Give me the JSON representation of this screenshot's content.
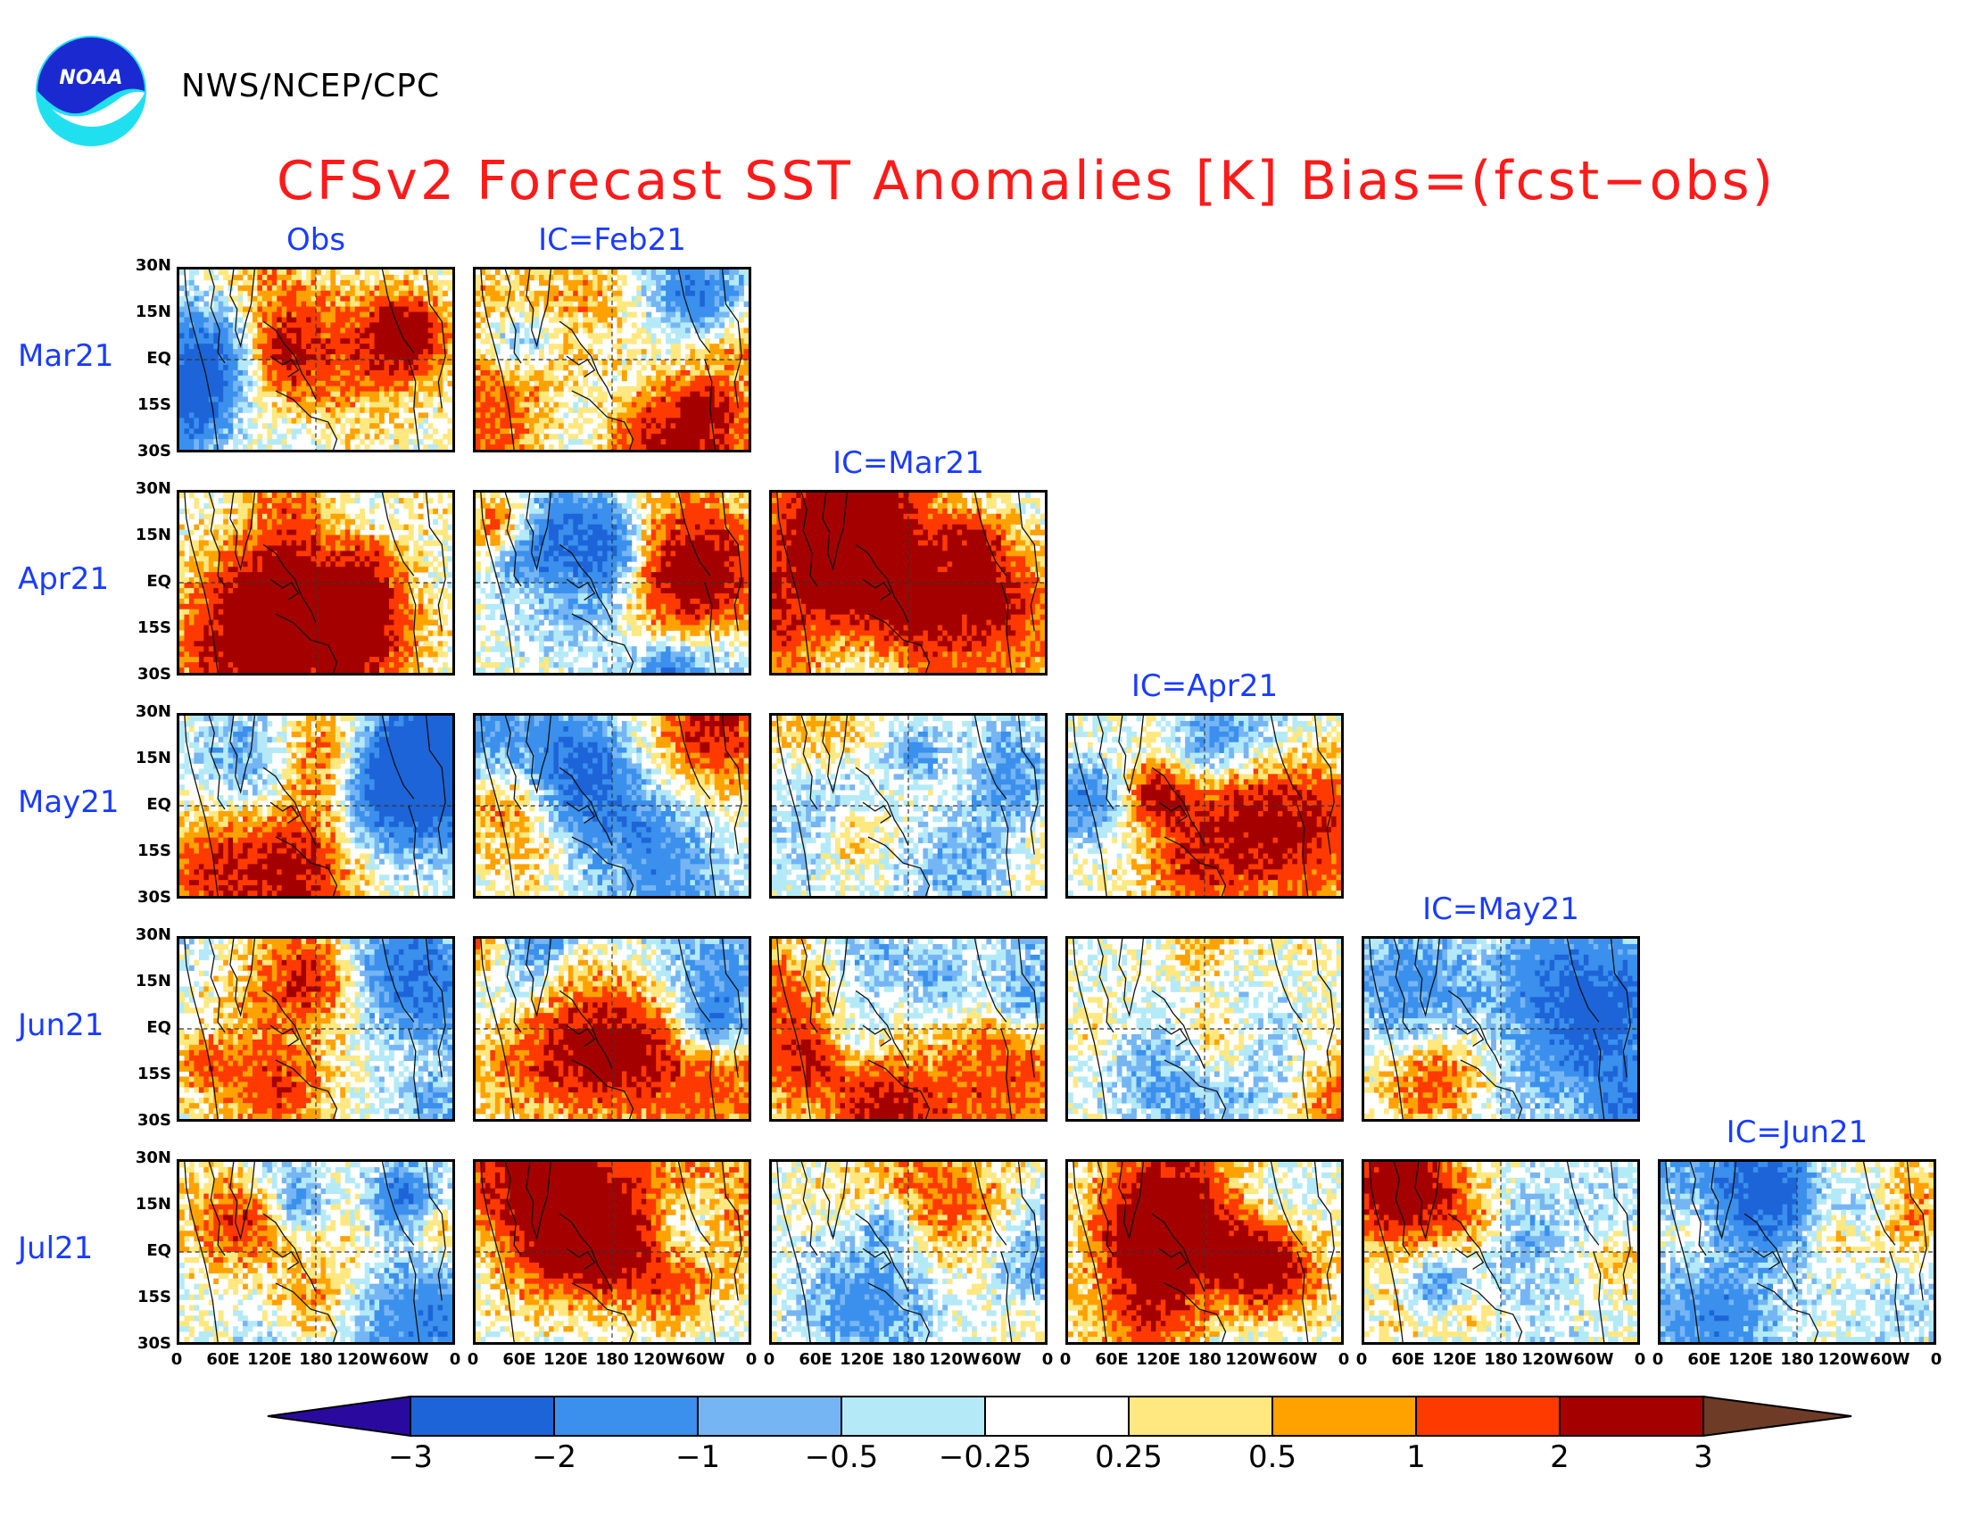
{
  "agency": "NWS/NCEP/CPC",
  "logo_text": "NOAA",
  "title": "CFSv2 Forecast SST Anomalies [K] Bias=(fcst−obs)",
  "column_headers": [
    "Obs",
    "IC=Feb21",
    "IC=Mar21",
    "IC=Apr21",
    "IC=May21",
    "IC=Jun21"
  ],
  "row_labels": [
    "Mar21",
    "Apr21",
    "May21",
    "Jun21",
    "Jul21"
  ],
  "lat_ticks": [
    "30N",
    "15N",
    "EQ",
    "15S",
    "30S"
  ],
  "lon_ticks": [
    "0",
    "60E",
    "120E",
    "180",
    "120W",
    "60W",
    "0"
  ],
  "colorbar": {
    "labels": [
      "−3",
      "−2",
      "−1",
      "−0.5",
      "−0.25",
      "0.25",
      "0.5",
      "1",
      "2",
      "3"
    ],
    "under_color": "#2a0a9e",
    "colors": [
      "#1d64d8",
      "#3a90ec",
      "#76b5f4",
      "#b4eaf8",
      "#ffffff",
      "#ffe880",
      "#ffa200",
      "#ff3a00",
      "#a40000"
    ],
    "over_color": "#6e3b26"
  },
  "panels_present": [
    [
      1,
      1,
      0,
      0,
      0,
      0
    ],
    [
      1,
      1,
      1,
      0,
      0,
      0
    ],
    [
      1,
      1,
      1,
      1,
      0,
      0
    ],
    [
      1,
      1,
      1,
      1,
      1,
      0
    ],
    [
      1,
      1,
      1,
      1,
      1,
      1
    ]
  ],
  "map_coverage": {
    "lon_range": [
      0,
      360
    ],
    "lat_range": [
      -30,
      30
    ]
  }
}
